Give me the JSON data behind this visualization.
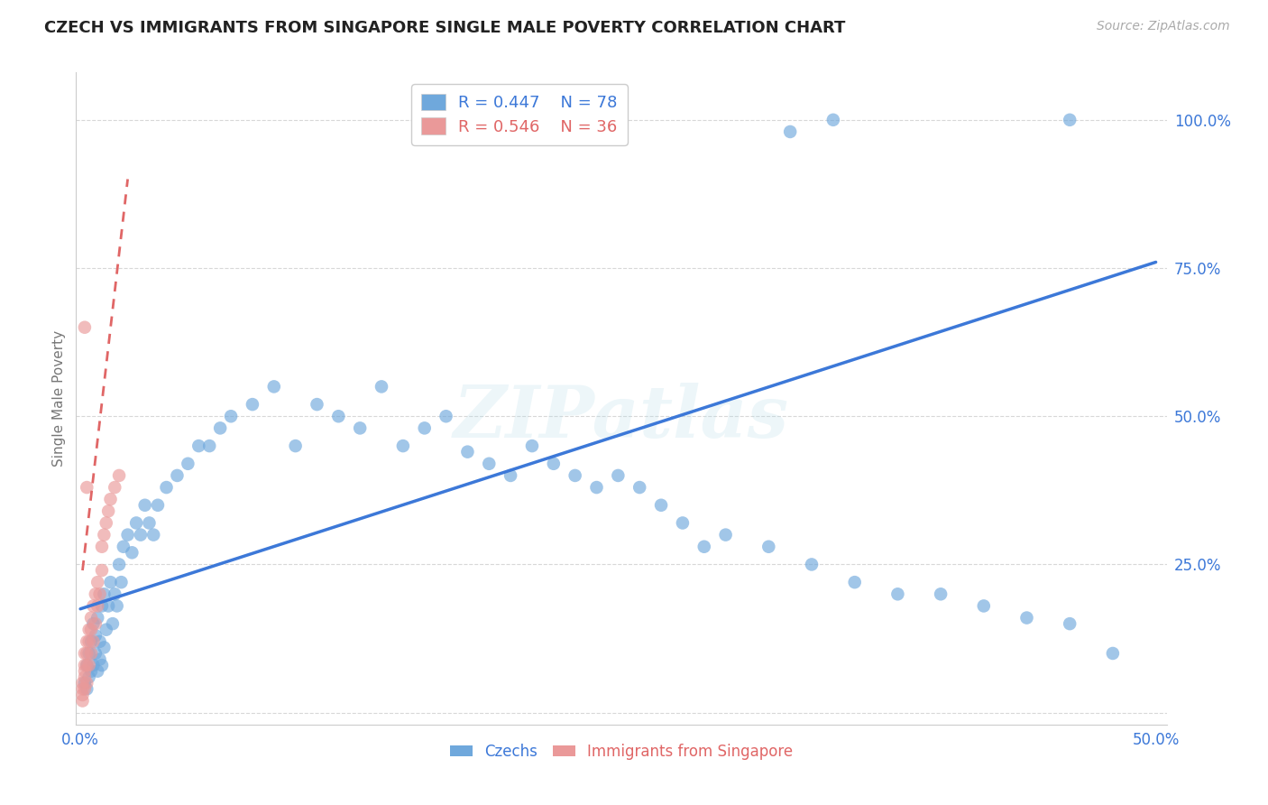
{
  "title": "CZECH VS IMMIGRANTS FROM SINGAPORE SINGLE MALE POVERTY CORRELATION CHART",
  "source": "Source: ZipAtlas.com",
  "ylabel_label": "Single Male Poverty",
  "blue_color": "#6fa8dc",
  "pink_color": "#ea9999",
  "blue_line_color": "#3c78d8",
  "pink_line_color": "#e06666",
  "legend_blue_R": "R = 0.447",
  "legend_blue_N": "N = 78",
  "legend_pink_R": "R = 0.546",
  "legend_pink_N": "N = 36",
  "watermark_text": "ZIPatlas",
  "background_color": "#ffffff",
  "grid_color": "#d8d8d8",
  "blue_scatter_x": [
    0.002,
    0.003,
    0.003,
    0.004,
    0.004,
    0.005,
    0.005,
    0.006,
    0.006,
    0.007,
    0.007,
    0.008,
    0.008,
    0.009,
    0.009,
    0.01,
    0.01,
    0.011,
    0.011,
    0.012,
    0.013,
    0.014,
    0.015,
    0.016,
    0.017,
    0.018,
    0.019,
    0.02,
    0.022,
    0.024,
    0.026,
    0.028,
    0.03,
    0.032,
    0.034,
    0.036,
    0.04,
    0.045,
    0.05,
    0.055,
    0.06,
    0.065,
    0.07,
    0.08,
    0.09,
    0.1,
    0.11,
    0.12,
    0.13,
    0.14,
    0.15,
    0.16,
    0.17,
    0.18,
    0.19,
    0.2,
    0.21,
    0.22,
    0.23,
    0.24,
    0.25,
    0.26,
    0.27,
    0.28,
    0.29,
    0.3,
    0.32,
    0.34,
    0.36,
    0.38,
    0.4,
    0.42,
    0.44,
    0.46,
    0.46,
    0.33,
    0.35,
    0.48
  ],
  "blue_scatter_y": [
    0.05,
    0.08,
    0.04,
    0.06,
    0.1,
    0.07,
    0.12,
    0.08,
    0.15,
    0.1,
    0.13,
    0.07,
    0.16,
    0.09,
    0.12,
    0.08,
    0.18,
    0.11,
    0.2,
    0.14,
    0.18,
    0.22,
    0.15,
    0.2,
    0.18,
    0.25,
    0.22,
    0.28,
    0.3,
    0.27,
    0.32,
    0.3,
    0.35,
    0.32,
    0.3,
    0.35,
    0.38,
    0.4,
    0.42,
    0.45,
    0.45,
    0.48,
    0.5,
    0.52,
    0.55,
    0.45,
    0.52,
    0.5,
    0.48,
    0.55,
    0.45,
    0.48,
    0.5,
    0.44,
    0.42,
    0.4,
    0.45,
    0.42,
    0.4,
    0.38,
    0.4,
    0.38,
    0.35,
    0.32,
    0.28,
    0.3,
    0.28,
    0.25,
    0.22,
    0.2,
    0.2,
    0.18,
    0.16,
    0.15,
    1.0,
    0.98,
    1.0,
    0.1
  ],
  "pink_scatter_x": [
    0.001,
    0.001,
    0.001,
    0.001,
    0.002,
    0.002,
    0.002,
    0.002,
    0.002,
    0.003,
    0.003,
    0.003,
    0.003,
    0.004,
    0.004,
    0.004,
    0.005,
    0.005,
    0.005,
    0.006,
    0.006,
    0.007,
    0.007,
    0.008,
    0.008,
    0.009,
    0.01,
    0.01,
    0.011,
    0.012,
    0.013,
    0.014,
    0.016,
    0.018,
    0.002,
    0.003
  ],
  "pink_scatter_y": [
    0.02,
    0.03,
    0.04,
    0.05,
    0.04,
    0.06,
    0.07,
    0.08,
    0.1,
    0.05,
    0.08,
    0.1,
    0.12,
    0.08,
    0.12,
    0.14,
    0.1,
    0.14,
    0.16,
    0.12,
    0.18,
    0.15,
    0.2,
    0.18,
    0.22,
    0.2,
    0.24,
    0.28,
    0.3,
    0.32,
    0.34,
    0.36,
    0.38,
    0.4,
    0.65,
    0.38
  ],
  "blue_line_x": [
    0.0,
    0.5
  ],
  "blue_line_y": [
    0.175,
    0.76
  ],
  "pink_line_x": [
    0.001,
    0.022
  ],
  "pink_line_y": [
    0.24,
    0.9
  ],
  "xlim": [
    -0.002,
    0.505
  ],
  "ylim": [
    -0.02,
    1.08
  ],
  "x_ticks": [
    0.0,
    0.1,
    0.2,
    0.3,
    0.4,
    0.5
  ],
  "x_tick_labels": [
    "0.0%",
    "",
    "",
    "",
    "",
    "50.0%"
  ],
  "y_ticks": [
    0.0,
    0.25,
    0.5,
    0.75,
    1.0
  ],
  "y_tick_labels": [
    "",
    "25.0%",
    "50.0%",
    "75.0%",
    "100.0%"
  ]
}
